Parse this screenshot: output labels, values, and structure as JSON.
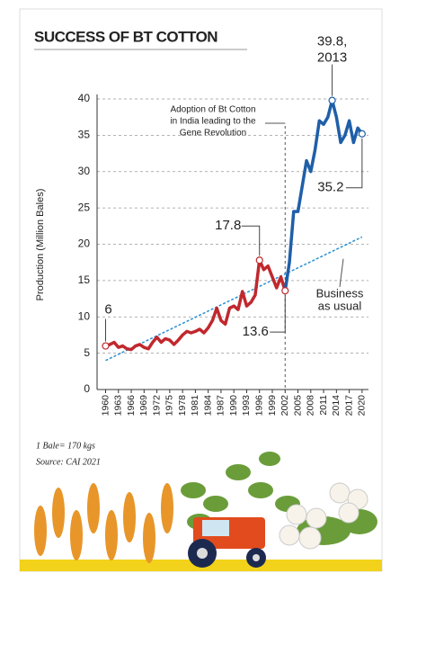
{
  "chart_data": {
    "type": "line",
    "title": "SUCCESS OF BT COTTON",
    "ylabel": "Production (Million Bales)",
    "x": [
      1960,
      1961,
      1962,
      1963,
      1964,
      1965,
      1966,
      1967,
      1968,
      1969,
      1970,
      1971,
      1972,
      1973,
      1974,
      1975,
      1976,
      1977,
      1978,
      1979,
      1980,
      1981,
      1982,
      1983,
      1984,
      1985,
      1986,
      1987,
      1988,
      1989,
      1990,
      1991,
      1992,
      1993,
      1994,
      1995,
      1996,
      1997,
      1998,
      1999,
      2000,
      2001,
      2002,
      2003,
      2004,
      2005,
      2006,
      2007,
      2008,
      2009,
      2010,
      2011,
      2012,
      2013,
      2014,
      2015,
      2016,
      2017,
      2018,
      2019,
      2020
    ],
    "series": [
      {
        "color": "#c0282d",
        "values": [
          6,
          6.2,
          6.5,
          5.8,
          6,
          5.6,
          5.5,
          6,
          6.2,
          5.8,
          5.6,
          6.5,
          7.2,
          6.5,
          7,
          6.8,
          6.2,
          6.8,
          7.5,
          8,
          7.8,
          8,
          8.3,
          7.8,
          8.5,
          9.5,
          11.2,
          9.5,
          9,
          11.2,
          11.5,
          11,
          13.5,
          11.5,
          12,
          13,
          17.8,
          16.5,
          17,
          15.5,
          14,
          15.5,
          13.6,
          null,
          null,
          null,
          null,
          null,
          null,
          null,
          null,
          null,
          null,
          null,
          null,
          null,
          null,
          null,
          null,
          null,
          null
        ],
        "value_labels": [
          "6",
          null,
          null,
          null,
          null,
          null,
          null,
          null,
          null,
          null,
          null,
          null,
          null,
          null,
          null,
          null,
          null,
          null,
          null,
          null,
          null,
          null,
          null,
          null,
          null,
          null,
          null,
          null,
          null,
          null,
          null,
          null,
          null,
          null,
          null,
          null,
          "17.8",
          null,
          null,
          null,
          null,
          null,
          "13.6",
          null,
          null,
          null,
          null,
          null,
          null,
          null,
          null,
          null,
          null,
          null,
          null,
          null,
          null,
          null,
          null,
          null,
          null
        ]
      },
      {
        "color": "#1f5fa8",
        "values": [
          null,
          null,
          null,
          null,
          null,
          null,
          null,
          null,
          null,
          null,
          null,
          null,
          null,
          null,
          null,
          null,
          null,
          null,
          null,
          null,
          null,
          null,
          null,
          null,
          null,
          null,
          null,
          null,
          null,
          null,
          null,
          null,
          null,
          null,
          null,
          null,
          null,
          null,
          null,
          null,
          null,
          null,
          13.6,
          17.5,
          24.5,
          24.5,
          28,
          31.5,
          30,
          33,
          37,
          36.5,
          37.5,
          39.8,
          37.5,
          34,
          35,
          37,
          34,
          36,
          35.2
        ],
        "value_labels": [
          null,
          null,
          null,
          null,
          null,
          null,
          null,
          null,
          null,
          null,
          null,
          null,
          null,
          null,
          null,
          null,
          null,
          null,
          null,
          null,
          null,
          null,
          null,
          null,
          null,
          null,
          null,
          null,
          null,
          null,
          null,
          null,
          null,
          null,
          null,
          null,
          null,
          null,
          null,
          null,
          null,
          null,
          null,
          null,
          null,
          null,
          null,
          null,
          null,
          null,
          null,
          null,
          null,
          [
            "39.8,",
            "2013"
          ],
          null,
          null,
          null,
          null,
          null,
          null,
          "35.2"
        ]
      }
    ],
    "trend": {
      "x": [
        1960,
        2020
      ],
      "values": [
        4,
        21
      ],
      "color": "#2a8fd0",
      "label": [
        "Business",
        "as usual"
      ]
    },
    "annotation": {
      "x": 2002,
      "lines": [
        "Adoption of Bt Cotton",
        "in India leading to the",
        "Gene Revolution"
      ]
    },
    "xlim": [
      1958,
      2021.5
    ],
    "xticks": [
      1960,
      1963,
      1966,
      1969,
      1972,
      1975,
      1978,
      1981,
      1984,
      1987,
      1990,
      1993,
      1996,
      1999,
      2002,
      2005,
      2008,
      2011,
      2014,
      2017,
      2020
    ],
    "ylim": [
      0,
      40
    ],
    "yticks": [
      0,
      5,
      10,
      15,
      20,
      25,
      30,
      35,
      40
    ],
    "grid": true,
    "notes": [
      "1 Bale= 170 kgs",
      "Source: CAI 2021"
    ]
  }
}
